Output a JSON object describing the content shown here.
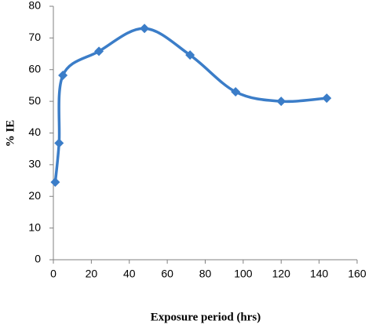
{
  "chart_data": {
    "type": "line",
    "smooth": true,
    "marker": "diamond",
    "x_label": "Exposure period (hrs)",
    "y_label": "% IE",
    "x": [
      1,
      3,
      5,
      24,
      48,
      72,
      96,
      120,
      144
    ],
    "series": [
      {
        "color": "#3b7dc8",
        "values": [
          24.5,
          36.8,
          58.2,
          65.8,
          73,
          64.6,
          53,
          50,
          51
        ]
      }
    ],
    "xlim": [
      0,
      160
    ],
    "xticks": [
      0,
      20,
      40,
      60,
      80,
      100,
      120,
      140,
      160
    ],
    "ylim": [
      0,
      80
    ],
    "yticks": [
      0,
      10,
      20,
      30,
      40,
      50,
      60,
      70,
      80
    ],
    "grid": false
  }
}
